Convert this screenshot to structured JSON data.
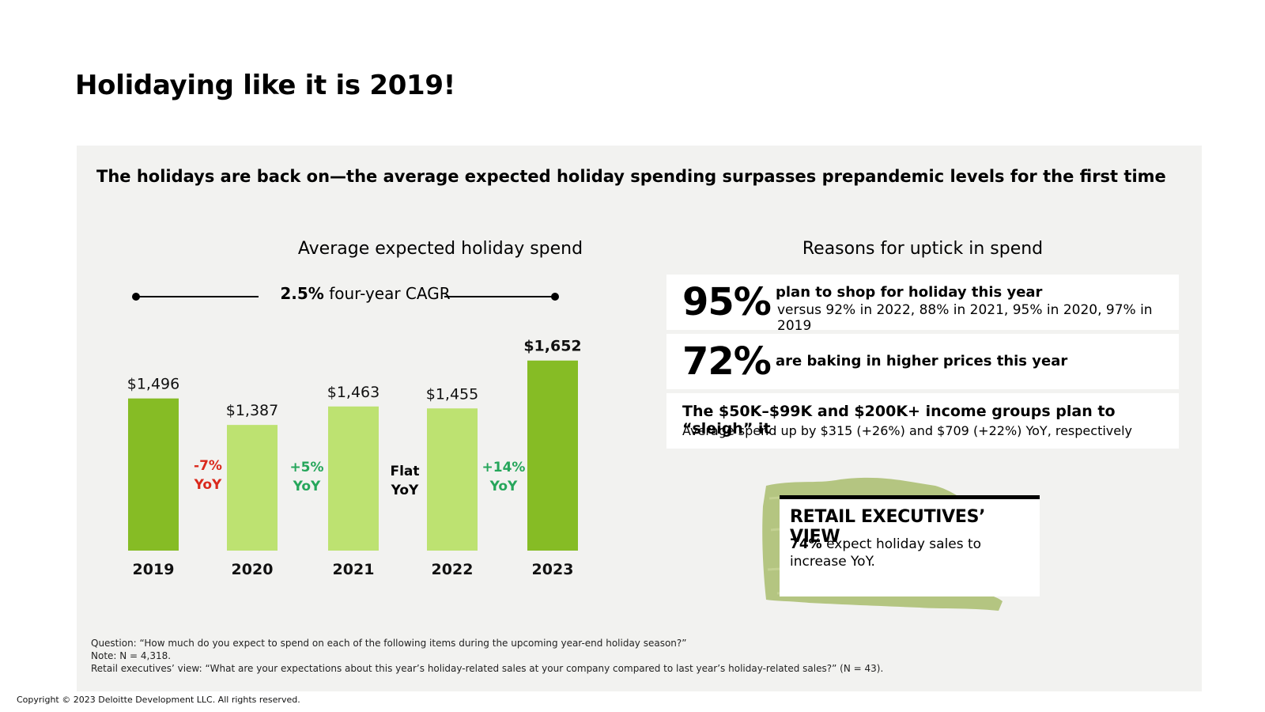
{
  "page_title": "Holidaying like it is 2019!",
  "headline": "The holidays are back on—the average expected holiday spending surpasses prepandemic levels for the first time",
  "colors": {
    "bar_dark": "#86bc25",
    "bar_light": "#bde271",
    "negative": "#da291c",
    "positive": "#26a65b",
    "neutral": "#000000",
    "panel_bg": "#f2f2f0",
    "texture": "#a5b86a"
  },
  "chart_data": {
    "type": "bar",
    "title": "Average expected holiday spend",
    "cagr": {
      "value": "2.5%",
      "label": "four-year CAGR"
    },
    "categories": [
      "2019",
      "2020",
      "2021",
      "2022",
      "2023"
    ],
    "values": [
      1496,
      1387,
      1463,
      1455,
      1652
    ],
    "value_labels": [
      "$1,496",
      "$1,387",
      "$1,463",
      "$1,455",
      "$1,652"
    ],
    "highlight": [
      true,
      false,
      false,
      false,
      true
    ],
    "ylim": [
      0,
      1700
    ],
    "yoy_changes": [
      {
        "line1": "-7%",
        "line2": "YoY",
        "tone": "negative"
      },
      {
        "line1": "+5%",
        "line2": "YoY",
        "tone": "positive"
      },
      {
        "line1": "Flat",
        "line2": "YoY",
        "tone": "neutral"
      },
      {
        "line1": "+14%",
        "line2": "YoY",
        "tone": "positive"
      }
    ]
  },
  "reasons": {
    "title": "Reasons for uptick in spend",
    "r1": {
      "pct": "95%",
      "text": "plan to shop for holiday this year",
      "sub": "versus 92% in 2022, 88% in 2021, 95% in 2020, 97% in 2019"
    },
    "r2": {
      "pct": "72%",
      "text": "are baking in higher prices this year"
    },
    "r3": {
      "title": "The $50K–$99K and $200K+ income groups plan to “sleigh” it",
      "sub": "Average spend up by $315 (+26%) and $709 (+22%) YoY, respectively"
    }
  },
  "executives": {
    "title": "RETAIL EXECUTIVES’ VIEW",
    "pct": "74%",
    "text": "expect holiday sales to increase YoY."
  },
  "footnotes": {
    "question": "Question: “How much do you expect to spend on each of the following items during the upcoming year-end holiday season?”",
    "note": "Note: N = 4,318.",
    "retail": "Retail executives’ view: “What are your expectations about this year’s holiday-related sales at your company compared to last year’s holiday-related sales?” (N = 43)."
  },
  "copyright": "Copyright © 2023 Deloitte Development LLC. All rights reserved."
}
